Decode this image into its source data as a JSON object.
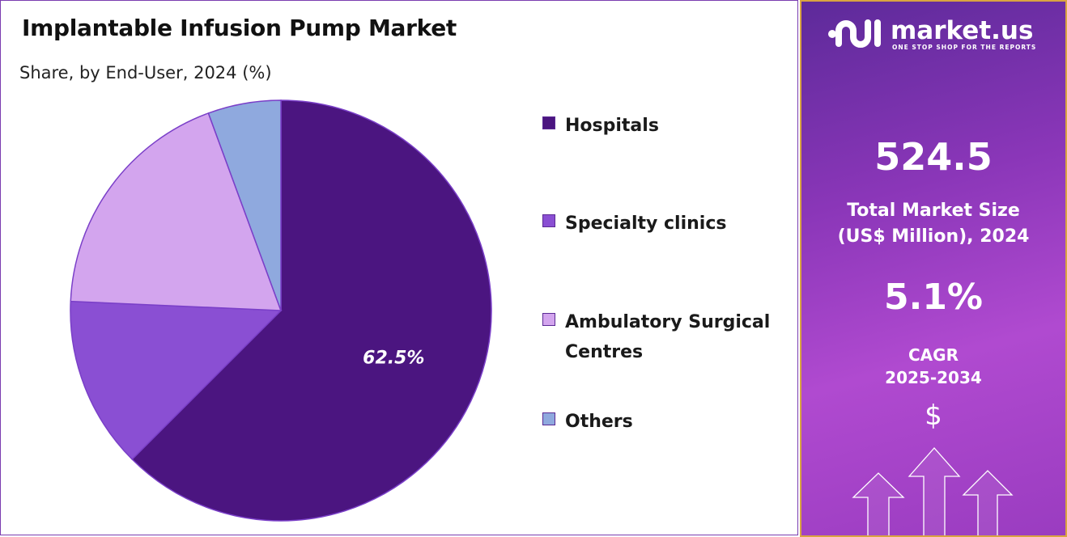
{
  "title": "Implantable Infusion Pump Market",
  "subtitle": "Share, by End-User, 2024 (%)",
  "chart_data": {
    "type": "pie",
    "categories": [
      "Hospitals",
      "Specialty clinics",
      "Ambulatory Surgical Centres",
      "Others"
    ],
    "values": [
      62.5,
      13.2,
      18.7,
      5.6
    ],
    "colors": [
      "#4b1580",
      "#8a4fd3",
      "#d3a5ee",
      "#8fa9de"
    ],
    "data_labels": [
      "62.5%",
      "",
      "",
      ""
    ],
    "legend_position": "right"
  },
  "legend": [
    {
      "label": "Hospitals"
    },
    {
      "label": "Specialty clinics"
    },
    {
      "label": "Ambulatory Surgical Centres"
    },
    {
      "label": "Others"
    }
  ],
  "panel": {
    "logo_text": "market.us",
    "logo_tagline": "ONE STOP SHOP FOR THE REPORTS",
    "market_size": "524.5",
    "market_size_label_1": "Total Market Size",
    "market_size_label_2": "(US$ Million), 2024",
    "cagr": "5.1%",
    "cagr_label": "CAGR",
    "cagr_period": "2025-2034",
    "currency_symbol": "$",
    "accent_border": "#d9a441"
  }
}
